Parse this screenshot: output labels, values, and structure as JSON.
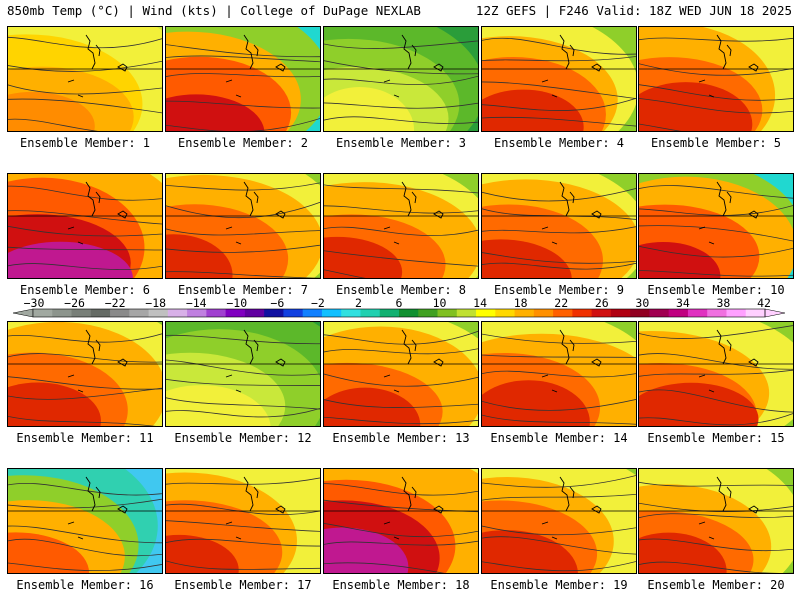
{
  "header": {
    "left": "850mb Temp (°C) | Wind (kts) | College of DuPage NEXLAB",
    "right": "12Z GEFS | F246 Valid: 18Z WED JUN 18 2025"
  },
  "members": [
    {
      "label": "Ensemble Member: 1",
      "scheme": "warm",
      "n": 1
    },
    {
      "label": "Ensemble Member: 2",
      "scheme": "hot_cool",
      "n": 2
    },
    {
      "label": "Ensemble Member: 3",
      "scheme": "mild",
      "n": 3
    },
    {
      "label": "Ensemble Member: 4",
      "scheme": "hot",
      "n": 4
    },
    {
      "label": "Ensemble Member: 5",
      "scheme": "hot",
      "n": 5
    },
    {
      "label": "Ensemble Member: 6",
      "scheme": "vhot",
      "n": 6
    },
    {
      "label": "Ensemble Member: 7",
      "scheme": "hot",
      "n": 7
    },
    {
      "label": "Ensemble Member: 8",
      "scheme": "hot",
      "n": 8
    },
    {
      "label": "Ensemble Member: 9",
      "scheme": "hot",
      "n": 9
    },
    {
      "label": "Ensemble Member: 10",
      "scheme": "hot_cool",
      "n": 10
    },
    {
      "label": "Ensemble Member: 11",
      "scheme": "hot",
      "n": 11
    },
    {
      "label": "Ensemble Member: 12",
      "scheme": "mild",
      "n": 12
    },
    {
      "label": "Ensemble Member: 13",
      "scheme": "hot",
      "n": 13
    },
    {
      "label": "Ensemble Member: 14",
      "scheme": "hot",
      "n": 14
    },
    {
      "label": "Ensemble Member: 15",
      "scheme": "hot",
      "n": 15
    },
    {
      "label": "Ensemble Member: 16",
      "scheme": "cool_hot",
      "n": 16
    },
    {
      "label": "Ensemble Member: 17",
      "scheme": "hot",
      "n": 17
    },
    {
      "label": "Ensemble Member: 18",
      "scheme": "vhot",
      "n": 18
    },
    {
      "label": "Ensemble Member: 19",
      "scheme": "hot",
      "n": 19
    },
    {
      "label": "Ensemble Member: 20",
      "scheme": "hot",
      "n": 20
    }
  ],
  "colorbar": {
    "labels": [
      "−30",
      "−26",
      "−22",
      "−18",
      "−14",
      "−10",
      "−6",
      "−2",
      "2",
      "6",
      "10",
      "14",
      "18",
      "22",
      "26",
      "30",
      "34",
      "38",
      "42"
    ],
    "colors": [
      "#a0a8a0",
      "#8c948c",
      "#787f78",
      "#646a64",
      "#8a8a8a",
      "#a6a6a6",
      "#c0c0c0",
      "#d8b0e8",
      "#c080e0",
      "#a040d0",
      "#8000c0",
      "#6000a0",
      "#1010a0",
      "#1040e0",
      "#1080ff",
      "#10c0ff",
      "#30e0e0",
      "#20d0b0",
      "#10b070",
      "#109030",
      "#40a020",
      "#80c020",
      "#c0e030",
      "#ffff00",
      "#ffd800",
      "#ffb000",
      "#ff9000",
      "#ff6000",
      "#f03000",
      "#d01010",
      "#b00010",
      "#900020",
      "#a00050",
      "#c00080",
      "#e030c0",
      "#f070e0",
      "#ffa0ff",
      "#ffd0ff"
    ]
  },
  "schemes": {
    "mild": [
      "#2a9d3a",
      "#5cb82a",
      "#8fcf2a",
      "#c9e83a",
      "#f2f03a"
    ],
    "warm": [
      "#c9e83a",
      "#f2f03a",
      "#ffd400",
      "#ffb000",
      "#ff8c00"
    ],
    "hot": [
      "#8fcf2a",
      "#f2f03a",
      "#ffb000",
      "#ff6a00",
      "#e02800"
    ],
    "vhot": [
      "#f2f03a",
      "#ffb000",
      "#ff5a00",
      "#d01010",
      "#c01890"
    ],
    "hot_cool": [
      "#20d8d0",
      "#8fcf2a",
      "#ffb000",
      "#ff5a00",
      "#d01010"
    ],
    "cool_hot": [
      "#40c8f0",
      "#30d0b0",
      "#8fcf2a",
      "#ffb000",
      "#ff5a00"
    ]
  }
}
